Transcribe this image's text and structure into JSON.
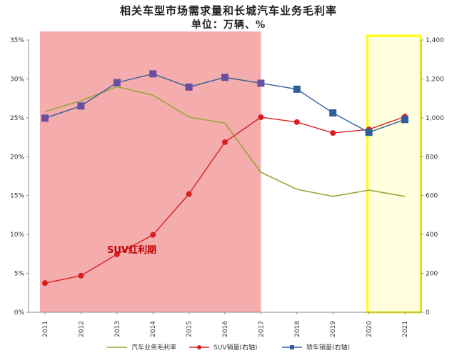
{
  "chart_data": {
    "type": "line",
    "title": "相关车型市场需求量和长城汽车业务毛利率",
    "subtitle": "单位：万辆、%",
    "x": [
      "2011",
      "2012",
      "2013",
      "2014",
      "2015",
      "2016",
      "2017",
      "2018",
      "2019",
      "2020",
      "2021"
    ],
    "left_axis": {
      "ylim": [
        0,
        35
      ],
      "ticks": [
        "0%",
        "5%",
        "10%",
        "15%",
        "20%",
        "25%",
        "30%",
        "35%"
      ]
    },
    "right_axis": {
      "ylim": [
        0,
        1400
      ],
      "ticks": [
        "0",
        "200",
        "400",
        "600",
        "800",
        "1,000",
        "1,200",
        "1,400"
      ]
    },
    "series": [
      {
        "name": "汽车业务毛利率",
        "axis": "left",
        "color": "#9aa63a",
        "marker": "none",
        "values": [
          25.8,
          27.2,
          29.0,
          27.9,
          25.1,
          24.3,
          18.0,
          15.8,
          14.9,
          15.7,
          14.9
        ]
      },
      {
        "name": "SUV销量(右轴)",
        "axis": "right",
        "color": "#d62020",
        "marker": "circle",
        "values": [
          150,
          188,
          298,
          398,
          608,
          875,
          1003,
          978,
          922,
          940,
          1006
        ]
      },
      {
        "name": "轿车销量(右轴)",
        "axis": "right",
        "color": "#2f5f98",
        "marker": "square",
        "values": [
          998,
          1061,
          1181,
          1226,
          1158,
          1208,
          1178,
          1147,
          1025,
          925,
          991
        ]
      }
    ],
    "highlights": [
      {
        "from": "2011",
        "to": "2017",
        "color": "#f4a3a3",
        "label": "SUV红利期"
      },
      {
        "from": "2020",
        "to": "2021",
        "color": "#ffff00",
        "border": "#e8e800"
      }
    ],
    "legend_position": "bottom"
  }
}
